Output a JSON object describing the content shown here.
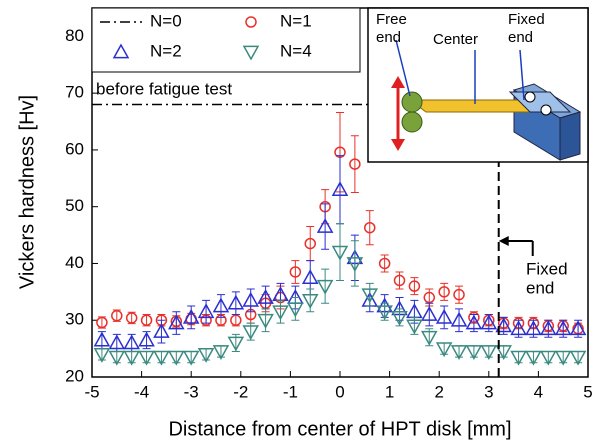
{
  "chart_data": {
    "type": "scatter",
    "x_label": "Distance from center of HPT disk [mm]",
    "y_label": "Vickers hardness [Hv]",
    "xlim": [
      -5,
      5
    ],
    "ylim": [
      20,
      85
    ],
    "xticks": [
      -5,
      -4,
      -3,
      -2,
      -1,
      0,
      1,
      2,
      3,
      4,
      5
    ],
    "yticks": [
      20,
      30,
      40,
      50,
      60,
      70,
      80
    ],
    "legend": "top-left",
    "series": [
      {
        "name": "N=0",
        "color": "#000000",
        "marker": "line",
        "x": [
          -5,
          5
        ],
        "values": [
          68,
          68
        ]
      },
      {
        "name": "N=1",
        "color": "#e8312a",
        "marker": "circle",
        "x": [
          -4.8,
          -4.5,
          -4.2,
          -3.9,
          -3.6,
          -3.3,
          -3.0,
          -2.7,
          -2.4,
          -2.1,
          -1.8,
          -1.5,
          -1.2,
          -0.9,
          -0.6,
          -0.3,
          0,
          0.3,
          0.6,
          0.9,
          1.2,
          1.5,
          1.8,
          2.1,
          2.4,
          2.7,
          3.0,
          3.3,
          3.6,
          3.9,
          4.2,
          4.5,
          4.8
        ],
        "values": [
          29.6,
          30.8,
          30.4,
          30,
          30,
          29.8,
          30.2,
          30,
          30,
          30,
          31,
          33,
          34,
          38.5,
          43.5,
          50,
          59.6,
          57.5,
          46.3,
          40,
          37,
          36,
          34,
          35,
          34.5,
          30.5,
          30,
          29.5,
          29.5,
          29.5,
          29,
          29,
          28.5
        ],
        "errors": [
          1,
          1,
          1,
          1,
          1,
          1,
          1,
          1,
          1,
          1,
          1.5,
          1.5,
          2,
          2,
          3,
          3,
          7,
          5,
          3,
          1.5,
          1.5,
          1.5,
          1.5,
          1.5,
          1.5,
          1,
          1,
          1,
          1,
          1,
          1,
          1,
          1
        ]
      },
      {
        "name": "N=2",
        "color": "#2a2fd0",
        "marker": "triangle-up",
        "x": [
          -4.8,
          -4.5,
          -4.2,
          -3.9,
          -3.6,
          -3.3,
          -3.0,
          -2.7,
          -2.4,
          -2.1,
          -1.8,
          -1.5,
          -1.2,
          -0.9,
          -0.6,
          -0.3,
          0,
          0.3,
          0.6,
          0.9,
          1.2,
          1.5,
          1.8,
          2.1,
          2.4,
          2.7,
          3.0,
          3.3,
          3.6,
          3.9,
          4.2,
          4.5,
          4.8
        ],
        "values": [
          26.5,
          26,
          26,
          26.5,
          28,
          29.5,
          30.5,
          31.5,
          32.5,
          33,
          33.5,
          34,
          34.5,
          34,
          37.5,
          46.5,
          53,
          41,
          33.5,
          32.5,
          32,
          31.5,
          31,
          30.5,
          30,
          29.5,
          29.5,
          29,
          28.5,
          28.5,
          28.5,
          28.5,
          28.5
        ],
        "errors": [
          1.5,
          1.5,
          1.5,
          1.5,
          2,
          2,
          2,
          2,
          2,
          2,
          2,
          2,
          2,
          2,
          3,
          4,
          6,
          4,
          2,
          2,
          2,
          2,
          2,
          2,
          2,
          1.5,
          1.5,
          1.5,
          1.5,
          1.5,
          1.5,
          1.5,
          1.5
        ]
      },
      {
        "name": "N=4",
        "color": "#3a8a80",
        "marker": "triangle-down",
        "x": [
          -4.8,
          -4.5,
          -4.2,
          -3.9,
          -3.6,
          -3.3,
          -3.0,
          -2.7,
          -2.4,
          -2.1,
          -1.8,
          -1.5,
          -1.2,
          -0.9,
          -0.6,
          -0.3,
          0,
          0.3,
          0.6,
          0.9,
          1.2,
          1.5,
          1.8,
          2.1,
          2.4,
          2.7,
          3.0,
          3.3,
          3.6,
          3.9,
          4.2,
          4.5,
          4.8
        ],
        "values": [
          24,
          23.5,
          23.5,
          23.5,
          23.5,
          23.5,
          23.5,
          24,
          24.5,
          26,
          28,
          30,
          31.5,
          32,
          33.5,
          36,
          42,
          40,
          34.5,
          31.5,
          30.5,
          29,
          27,
          25,
          24.5,
          24.5,
          24.5,
          24.5,
          23.5,
          23.5,
          23.5,
          23.5,
          23.5
        ],
        "errors": [
          1,
          1,
          1,
          1,
          1,
          1,
          1,
          1,
          1,
          1.5,
          1.5,
          2,
          2,
          2,
          2,
          3,
          5,
          4,
          2,
          1.5,
          1.5,
          1.5,
          1.5,
          1,
          1,
          1,
          1,
          1,
          1,
          1,
          1,
          1,
          1
        ]
      }
    ],
    "annotations": {
      "reference_text": "before fatigue test",
      "fixed_end_x": 3.2,
      "fixed_end_text": [
        "Fixed",
        "end"
      ]
    },
    "inset": {
      "free_end": [
        "Free",
        "end"
      ],
      "center": "Center",
      "fixed_end": [
        "Fixed",
        "end"
      ]
    }
  }
}
